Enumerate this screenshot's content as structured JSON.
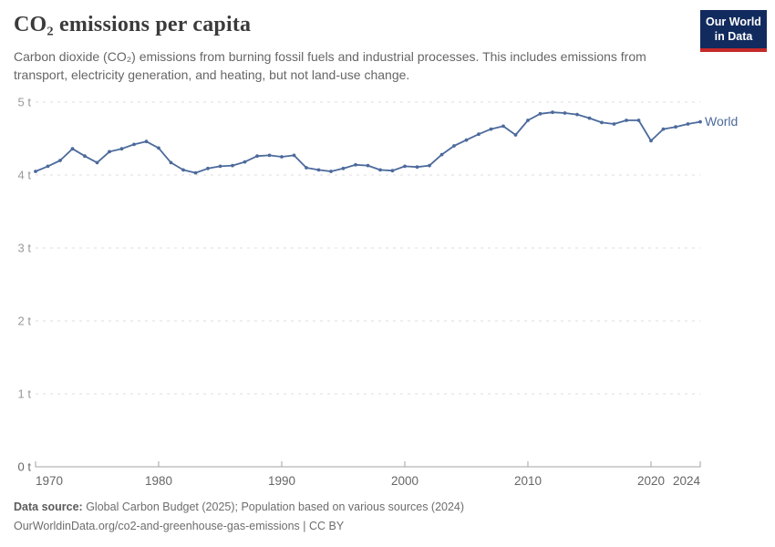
{
  "header": {
    "title": "CO₂ emissions per capita",
    "subtitle_line1": "Carbon dioxide (CO₂) emissions from burning fossil fuels and industrial processes. This includes emissions from",
    "subtitle_line2": "transport, electricity generation, and heating, but not land-use change."
  },
  "logo": {
    "line1": "Our World",
    "line2": "in Data",
    "bg_color": "#122B5E",
    "accent_color": "#C5292A"
  },
  "chart_data": {
    "type": "line",
    "title": "CO₂ emissions per capita",
    "xlabel": "",
    "ylabel": "",
    "unit": "t",
    "x_domain": [
      1970,
      2024
    ],
    "y_domain": [
      0,
      5
    ],
    "grid": "horizontal-dashed",
    "legend": "inline-end-label",
    "xticks": [
      {
        "value": 1970,
        "label": "1970"
      },
      {
        "value": 1980,
        "label": "1980"
      },
      {
        "value": 1990,
        "label": "1990"
      },
      {
        "value": 2000,
        "label": "2000"
      },
      {
        "value": 2010,
        "label": "2010"
      },
      {
        "value": 2020,
        "label": "2020"
      },
      {
        "value": 2024,
        "label": "2024"
      }
    ],
    "yticks": [
      {
        "value": 0,
        "label": "0 t"
      },
      {
        "value": 1,
        "label": "1 t"
      },
      {
        "value": 2,
        "label": "2 t"
      },
      {
        "value": 3,
        "label": "3 t"
      },
      {
        "value": 4,
        "label": "4 t"
      },
      {
        "value": 5,
        "label": "5 t"
      }
    ],
    "series": [
      {
        "name": "World",
        "color": "#4C6A9C",
        "x": [
          1970,
          1971,
          1972,
          1973,
          1974,
          1975,
          1976,
          1977,
          1978,
          1979,
          1980,
          1981,
          1982,
          1983,
          1984,
          1985,
          1986,
          1987,
          1988,
          1989,
          1990,
          1991,
          1992,
          1993,
          1994,
          1995,
          1996,
          1997,
          1998,
          1999,
          2000,
          2001,
          2002,
          2003,
          2004,
          2005,
          2006,
          2007,
          2008,
          2009,
          2010,
          2011,
          2012,
          2013,
          2014,
          2015,
          2016,
          2017,
          2018,
          2019,
          2020,
          2021,
          2022,
          2023,
          2024
        ],
        "values": [
          4.05,
          4.12,
          4.2,
          4.36,
          4.26,
          4.17,
          4.32,
          4.36,
          4.42,
          4.46,
          4.37,
          4.17,
          4.07,
          4.03,
          4.09,
          4.12,
          4.13,
          4.18,
          4.26,
          4.27,
          4.25,
          4.27,
          4.1,
          4.07,
          4.05,
          4.09,
          4.14,
          4.13,
          4.07,
          4.06,
          4.12,
          4.11,
          4.13,
          4.28,
          4.4,
          4.48,
          4.56,
          4.63,
          4.67,
          4.55,
          4.75,
          4.84,
          4.86,
          4.85,
          4.83,
          4.78,
          4.72,
          4.7,
          4.75,
          4.75,
          4.47,
          4.63,
          4.66,
          4.7,
          4.73
        ]
      }
    ],
    "colors": {
      "gridline": "#dcdcdc",
      "axis_line": "#a3a3a3",
      "y_tick_label": "#999999",
      "x_tick_label": "#666666"
    }
  },
  "footer": {
    "data_source_label": "Data source:",
    "data_source_text": " Global Carbon Budget (2025); Population based on various sources (2024)",
    "citation": "OurWorldinData.org/co2-and-greenhouse-gas-emissions | CC BY"
  }
}
